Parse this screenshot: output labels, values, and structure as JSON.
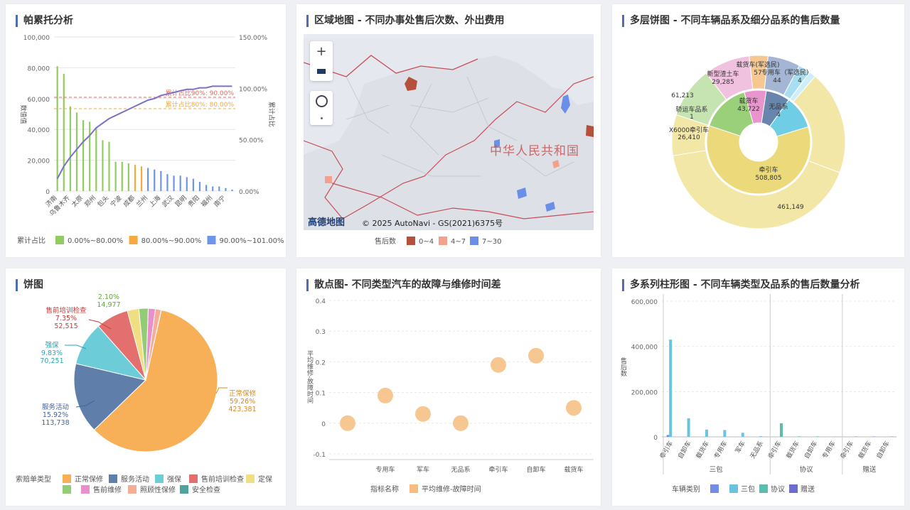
{
  "panels": {
    "pareto": {
      "title": "帕累托分析"
    },
    "map": {
      "title": "区域地图 - 不同办事处售后次数、外出费用"
    },
    "sunburst": {
      "title": "多层饼图 - 不同车辆品系及细分品系的售后数量"
    },
    "pie": {
      "title": "饼图"
    },
    "scatter": {
      "title": "散点图- 不同类型汽车的故障与维修时间差"
    },
    "bars": {
      "title": "多系列柱形图 - 不同车辆类型及品系的售后数量分析"
    }
  },
  "map": {
    "watermark": "中华人民共和国",
    "logo": "高德地图",
    "copyright": "© 2025 AutoNavi - GS(2021)6375号",
    "zoom_in": "+",
    "legend_title": "售后数",
    "legend": [
      {
        "label": "0~4",
        "color": "#b5503c"
      },
      {
        "label": "4~7",
        "color": "#f5a08c"
      },
      {
        "label": "7~30",
        "color": "#6b8fe8"
      }
    ]
  },
  "chart_data": [
    {
      "type": "bar",
      "title": "帕累托分析",
      "ylabel": "数值值",
      "y2label": "累计占比",
      "ylim": [
        0,
        100000
      ],
      "y_ticks": [
        "0",
        "20,000",
        "40,000",
        "60,000",
        "80,000",
        "100,000"
      ],
      "y2_ticks": [
        "0.00%",
        "50.00%",
        "100.00%",
        "150.00%"
      ],
      "x_labels_shown": [
        "济南",
        "乌鲁木齐",
        "太原",
        "郑州",
        "包头",
        "宁波",
        "成都",
        "兰州",
        "上海",
        "武汉",
        "昆明",
        "贵阳",
        "福州",
        "南宁"
      ],
      "values": [
        81000,
        76000,
        55000,
        51000,
        46000,
        45000,
        41000,
        33000,
        32000,
        19000,
        19000,
        18000,
        17000,
        16000,
        15000,
        14000,
        13000,
        11000,
        10000,
        10000,
        9000,
        8000,
        6000,
        4000,
        3000,
        3000,
        2000,
        1000
      ],
      "cumulative_pct": [
        8,
        16,
        22,
        27,
        32,
        36,
        41,
        44,
        47,
        49,
        51,
        53,
        55,
        57,
        59,
        60,
        62,
        63,
        64,
        65,
        66,
        66,
        67,
        67,
        68,
        68,
        68,
        68
      ],
      "reference_lines": [
        {
          "label": "累计占比90%: 90.00%",
          "color": "#e06a5c"
        },
        {
          "label": "累计占比80%: 80.00%",
          "color": "#f0a941"
        }
      ],
      "legend_title": "累计占比",
      "legend": [
        {
          "label": "0.00%~80.00%",
          "color": "#91cc60"
        },
        {
          "label": "80.00%~90.00%",
          "color": "#f5a93f"
        },
        {
          "label": "90.00%~101.00%",
          "color": "#6d95ea"
        }
      ]
    },
    {
      "type": "pie",
      "title": "多层饼图 - 不同车辆品系及细分品系的售后数量",
      "inner": [
        {
          "name": "牵引车",
          "value": 508805,
          "color": "#ecda7a"
        },
        {
          "name": "轿运车品系",
          "value": 1,
          "color": "#9bd07a"
        },
        {
          "name": "载货车",
          "value": 43722,
          "color": "#e795cc"
        },
        {
          "name": "无品系",
          "value": 4,
          "color": "#6785ad"
        },
        {
          "name": "",
          "value": 4,
          "color": "#6fcde6"
        }
      ],
      "outer_labels": [
        {
          "name": "",
          "value": "461,149"
        },
        {
          "name": "X6000牵引车",
          "value": "26,410"
        },
        {
          "name": "",
          "value": "61,213"
        },
        {
          "name": "新型渣土车",
          "value": "29,285"
        },
        {
          "name": "载货车(军选民)",
          "value": "57"
        },
        {
          "name": "专用车（军选民）",
          "value": "44"
        },
        {
          "name": "",
          "value": "4"
        }
      ]
    },
    {
      "type": "pie",
      "title": "饼图",
      "legend_title": "索赔单类型",
      "slices": [
        {
          "name": "正常保修",
          "pct": "59.26%",
          "value": "423,381",
          "share": 59.26,
          "color": "#f7af58"
        },
        {
          "name": "服务活动",
          "pct": "15.92%",
          "value": "113,738",
          "share": 15.92,
          "color": "#5f7faa"
        },
        {
          "name": "强保",
          "pct": "9.83%",
          "value": "70,251",
          "share": 9.83,
          "color": "#6ccdd9"
        },
        {
          "name": "售前培训检查",
          "pct": "7.35%",
          "value": "52,515",
          "share": 7.35,
          "color": "#e36f6f"
        },
        {
          "name": "定保",
          "pct": "",
          "value": "",
          "share": 2.6,
          "color": "#f0de82"
        },
        {
          "name": "",
          "pct": "2.10%",
          "value": "14,977",
          "share": 2.1,
          "color": "#93cc76"
        },
        {
          "name": "售前维修",
          "pct": "",
          "value": "",
          "share": 1.6,
          "color": "#e990cc"
        },
        {
          "name": "照顾性保修",
          "pct": "",
          "value": "",
          "share": 1.3,
          "color": "#f4ae98"
        },
        {
          "name": "安全检查",
          "pct": "",
          "value": "",
          "share": 0.04,
          "color": "#4ea49b"
        }
      ],
      "legend": [
        "正常保修",
        "服务活动",
        "强保",
        "售前培训检查",
        "定保",
        "",
        "售前维修",
        "照顾性保修",
        "安全检查"
      ]
    },
    {
      "type": "scatter",
      "title": "散点图- 不同类型汽车的故障与维修时间差",
      "ylabel": "平均维修-故障时间",
      "ylim": [
        -0.1,
        0.4
      ],
      "y_ticks": [
        "-0.1",
        "0",
        "0.1",
        "0.2",
        "0.3",
        "0.4"
      ],
      "categories": [
        "",
        "专用车",
        "军车",
        "无品系",
        "牵引车",
        "自卸车",
        "载货车"
      ],
      "values": [
        0.0,
        0.09,
        0.03,
        0.0,
        0.19,
        0.22,
        0.05
      ],
      "legend_title": "指标名称",
      "legend": [
        {
          "label": "平均维修-故障时间",
          "color": "#f6bd7f"
        }
      ]
    },
    {
      "type": "bar",
      "title": "多系列柱形图 - 不同车辆类型及品系的售后数量分析",
      "ylabel": "售后数",
      "ylim": [
        0,
        600000
      ],
      "y_ticks": [
        "0",
        "200,000",
        "400,000",
        "600,000"
      ],
      "categories": [
        "牵引车",
        "自卸车",
        "载货车",
        "专用车",
        "军车",
        "无品系",
        "牵引车",
        "载货车",
        "自卸车",
        "专用车",
        "牵引车",
        "载货车",
        "自卸车"
      ],
      "groups": [
        {
          "name": "三包",
          "from": 0,
          "to": 5
        },
        {
          "name": "协议",
          "from": 6,
          "to": 9
        },
        {
          "name": "赠送",
          "from": 10,
          "to": 12
        }
      ],
      "series": [
        {
          "name": "",
          "color": "#6f8fe6",
          "values": [
            8000,
            0,
            0,
            0,
            0,
            0,
            0,
            0,
            0,
            0,
            0,
            0,
            0
          ]
        },
        {
          "name": "三包",
          "color": "#6ac3df",
          "values": [
            430000,
            82000,
            32000,
            30000,
            18000,
            3000,
            0,
            0,
            0,
            0,
            0,
            0,
            0
          ]
        },
        {
          "name": "协议",
          "color": "#5dbcae",
          "values": [
            0,
            0,
            0,
            0,
            0,
            0,
            60000,
            2000,
            2000,
            1000,
            0,
            0,
            0
          ]
        },
        {
          "name": "赠送",
          "color": "#6b6ed0",
          "values": [
            0,
            0,
            0,
            0,
            0,
            0,
            0,
            0,
            0,
            0,
            1000,
            1000,
            1000
          ]
        }
      ],
      "legend_title": "车辆类别",
      "legend": [
        "",
        "三包",
        "协议",
        "赠送"
      ]
    }
  ]
}
